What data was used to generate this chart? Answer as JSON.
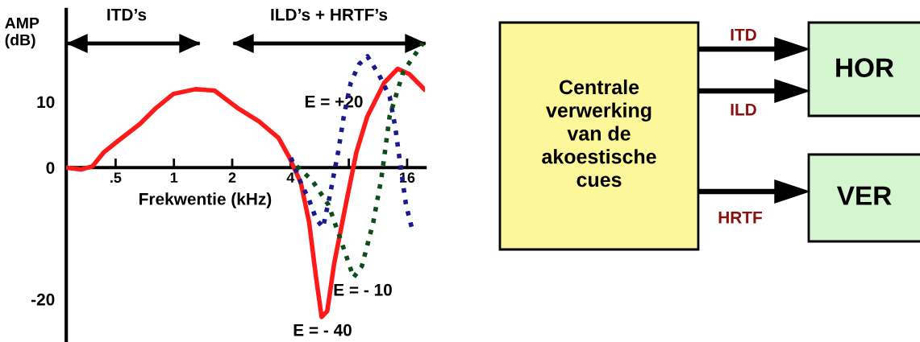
{
  "chart_data": [
    {
      "type": "line",
      "xlabel": "Frekwentie (kHz)",
      "ylabel": "AMP\n(dB)",
      "log": "x",
      "xlim": [
        0.278,
        19.8
      ],
      "ylim": [
        -26.5,
        24
      ],
      "xticks": [
        {
          "value": 0.5,
          "label": ".5"
        },
        1,
        2,
        4,
        {
          "value": 8,
          "label": null
        },
        16
      ],
      "yticks": [
        -20,
        0,
        10
      ],
      "grid": false,
      "legend": false,
      "series": [
        {
          "color": "#ff1a1a",
          "line_style": "solid",
          "x": [
            0.278,
            0.333,
            0.38,
            0.434,
            0.512,
            0.666,
            0.812,
            0.995,
            1.29,
            1.62,
            2.12,
            2.75,
            3.47,
            3.95,
            4.52,
            4.99,
            5.42,
            5.79,
            6.19,
            6.72,
            7.66,
            8.75,
            9.98,
            12.2,
            14.3,
            16.4,
            19.6
          ],
          "values": [
            0,
            -0.3,
            0.2,
            2.3,
            4.0,
            6.6,
            9.1,
            11.2,
            11.9,
            11.7,
            9.1,
            7.0,
            4.5,
            1.5,
            -2.3,
            -8.3,
            -16.7,
            -22.7,
            -21.8,
            -14.6,
            -6.1,
            2.3,
            7.8,
            12.9,
            15.0,
            14.2,
            11.9
          ]
        },
        {
          "color": "#1a1a8c",
          "line_style": "dotted",
          "x": [
            4.02,
            4.52,
            4.99,
            5.42,
            5.89,
            6.39,
            7.06,
            7.54,
            8.19,
            9.04,
            9.98,
            11.4,
            13.0,
            13.9,
            14.8,
            15.8,
            16.9
          ],
          "values": [
            1.5,
            -2.3,
            -4.9,
            -7.8,
            -9.1,
            -4.2,
            2.5,
            7.8,
            12.9,
            15.7,
            16.9,
            14.2,
            10.8,
            6.1,
            0.2,
            -5.7,
            -9.1
          ]
        },
        {
          "color": "#0d4d1a",
          "line_style": "dotted",
          "x": [
            4.3,
            5.16,
            6.29,
            7.41,
            8.46,
            9.34,
            10.7,
            11.8,
            13.0,
            15.3,
            19.3
          ],
          "values": [
            0.2,
            -1.9,
            -5.7,
            -11.7,
            -16.7,
            -15.0,
            -8.3,
            -1.5,
            7.8,
            14.6,
            18.9
          ]
        }
      ],
      "annotations": [
        "ITD’s",
        "ILD’s + HRTF’s",
        "E = +20",
        "E = - 10",
        "E = - 40"
      ]
    },
    {
      "type": "other",
      "annotations": [
        "Centrale\nverwerking\nvan de\nakoestische\ncues",
        "HOR",
        "VER",
        "ITD",
        "ILD",
        "HRTF"
      ]
    }
  ]
}
